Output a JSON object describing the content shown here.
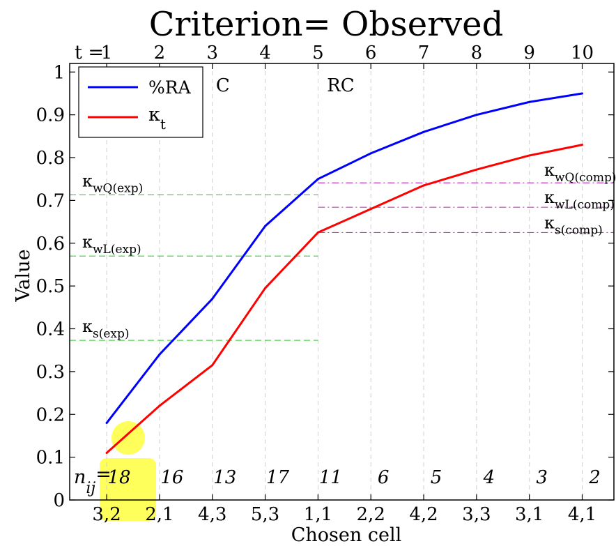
{
  "chart_data": {
    "type": "line",
    "title": "Criterion= Observed",
    "xlabel": "Chosen cell",
    "ylabel": "Value",
    "ylim": [
      0,
      1.02
    ],
    "x": [
      1,
      2,
      3,
      4,
      5,
      6,
      7,
      8,
      9,
      10
    ],
    "xlim": [
      0.3,
      10.6
    ],
    "bottom_tick_labels": [
      "3,2",
      "2,1",
      "4,3",
      "5,3",
      "1,1",
      "2,2",
      "4,2",
      "3,3",
      "3,1",
      "4,1"
    ],
    "top_axis_prefix": "t =",
    "top_tick_labels": [
      "1",
      "2",
      "3",
      "4",
      "5",
      "6",
      "7",
      "8",
      "9",
      "10"
    ],
    "y_ticks": [
      0,
      0.1,
      0.2,
      0.3,
      0.4,
      0.5,
      0.6,
      0.7,
      0.8,
      0.9,
      1
    ],
    "y_tick_labels": [
      "0",
      "0.1",
      "0.2",
      "0.3",
      "0.4",
      "0.5",
      "0.6",
      "0.7",
      "0.8",
      "0.9",
      "1"
    ],
    "n_prefix": "n",
    "n_prefix_sub": "ij",
    "n_prefix_suffix": "=",
    "n_values": [
      "18",
      "16",
      "13",
      "17",
      "11",
      "6",
      "5",
      "4",
      "3",
      "2"
    ],
    "series": [
      {
        "name": "%RA",
        "color": "#0000ff",
        "values": [
          0.18,
          0.34,
          0.47,
          0.64,
          0.75,
          0.81,
          0.86,
          0.9,
          0.93,
          0.95
        ]
      },
      {
        "name": "κ",
        "name_sub": "t",
        "color": "#ff0000",
        "values": [
          0.11,
          0.22,
          0.315,
          0.495,
          0.625,
          0.68,
          0.735,
          0.772,
          0.805,
          0.83
        ]
      }
    ],
    "reference_lines": [
      {
        "label": "κ",
        "sub": "wQ(exp)",
        "y": 0.713,
        "x_from": 0.3,
        "x_to": 5,
        "color": "#33cc33",
        "style": "dash"
      },
      {
        "label": "κ",
        "sub": "wL(exp)",
        "y": 0.57,
        "x_from": 0.3,
        "x_to": 5,
        "color": "#33cc33",
        "style": "dash"
      },
      {
        "label": "κ",
        "sub": "s(exp)",
        "y": 0.373,
        "x_from": 0.3,
        "x_to": 5,
        "color": "#33cc33",
        "style": "dash"
      },
      {
        "label": "κ",
        "sub": "wQ(comp)",
        "y": 0.741,
        "x_from": 5,
        "x_to": 10.6,
        "color": "#cc33cc",
        "style": "dashdot"
      },
      {
        "label": "κ",
        "sub": "wL(comp)",
        "y": 0.684,
        "x_from": 5,
        "x_to": 10.6,
        "color": "#cc33cc",
        "style": "dashdot"
      },
      {
        "label": "κ",
        "sub": "s(comp)",
        "y": 0.625,
        "x_from": 5,
        "x_to": 10.6,
        "color": "#cc33cc",
        "style": "dashdot"
      }
    ],
    "annotations": [
      {
        "text": "C",
        "x": 3.2
      },
      {
        "text": "RC",
        "x": 5.3
      }
    ],
    "highlight_color": "#ffff33",
    "grid": "vertical dashed",
    "legend_position": "top-left"
  }
}
